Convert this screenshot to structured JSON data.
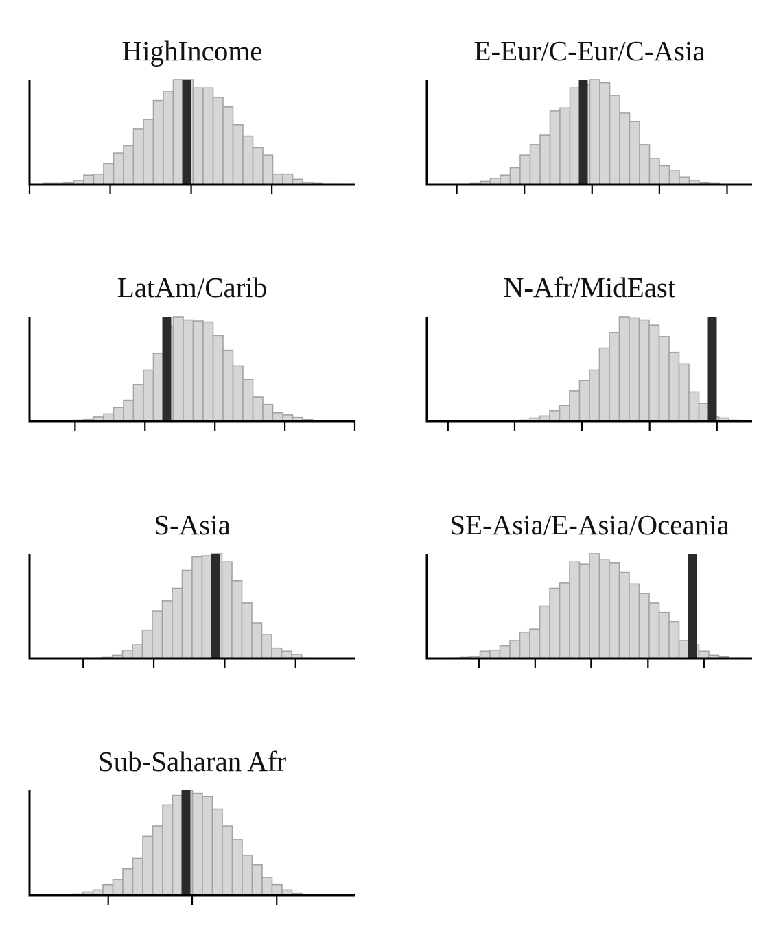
{
  "chart_data": [
    {
      "type": "bar",
      "title": "HighIncome",
      "bar_heights_relative": [
        0.01,
        0.01,
        0.015,
        0.04,
        0.09,
        0.1,
        0.2,
        0.3,
        0.37,
        0.53,
        0.62,
        0.8,
        0.89,
        1.0,
        1.0,
        0.92,
        0.92,
        0.83,
        0.74,
        0.57,
        0.46,
        0.35,
        0.28,
        0.1,
        0.1,
        0.05,
        0.02,
        0.01,
        0.005,
        0.005
      ],
      "observed_bin": 14,
      "x_ticks": [
        0.0,
        0.248,
        0.497,
        0.745
      ]
    },
    {
      "type": "bar",
      "title": "E-Eur/C-Eur/C-Asia",
      "bar_heights_relative": [
        0.005,
        0.01,
        0.03,
        0.06,
        0.09,
        0.16,
        0.28,
        0.38,
        0.47,
        0.7,
        0.73,
        0.92,
        0.95,
        1.0,
        0.97,
        0.85,
        0.68,
        0.6,
        0.38,
        0.25,
        0.18,
        0.13,
        0.07,
        0.04,
        0.015,
        0.01
      ],
      "observed_bin": 12,
      "x_ticks": [
        0.092,
        0.3,
        0.508,
        0.715,
        0.923
      ]
    },
    {
      "type": "bar",
      "title": "LatAm/Carib",
      "bar_heights_relative": [
        0.005,
        0.01,
        0.015,
        0.04,
        0.07,
        0.13,
        0.2,
        0.35,
        0.49,
        0.65,
        0.91,
        1.0,
        0.97,
        0.96,
        0.95,
        0.82,
        0.68,
        0.53,
        0.4,
        0.23,
        0.16,
        0.08,
        0.06,
        0.035,
        0.015,
        0.005
      ],
      "observed_bin": 10,
      "x_ticks": [
        0.14,
        0.355,
        0.57,
        0.785,
        1.0
      ]
    },
    {
      "type": "bar",
      "title": "N-Afr/MidEast",
      "bar_heights_relative": [
        0.005,
        0.01,
        0.03,
        0.05,
        0.1,
        0.15,
        0.29,
        0.39,
        0.49,
        0.7,
        0.85,
        1.0,
        0.99,
        0.97,
        0.92,
        0.81,
        0.66,
        0.55,
        0.28,
        0.17,
        0.04,
        0.03,
        0.01,
        0.005
      ],
      "observed_bin": 20,
      "x_ticks": [
        0.065,
        0.27,
        0.477,
        0.685,
        0.892
      ]
    },
    {
      "type": "bar",
      "title": "S-Asia",
      "bar_heights_relative": [
        0.005,
        0.01,
        0.03,
        0.08,
        0.13,
        0.27,
        0.45,
        0.55,
        0.67,
        0.84,
        0.97,
        0.98,
        1.0,
        0.92,
        0.74,
        0.53,
        0.34,
        0.23,
        0.1,
        0.07,
        0.04,
        0.005
      ],
      "observed_bin": 12,
      "x_ticks": [
        0.165,
        0.382,
        0.6,
        0.818
      ]
    },
    {
      "type": "bar",
      "title": "SE-Asia/E-Asia/Oceania",
      "bar_heights_relative": [
        0.005,
        0.01,
        0.02,
        0.07,
        0.08,
        0.12,
        0.17,
        0.25,
        0.28,
        0.5,
        0.67,
        0.72,
        0.92,
        0.9,
        1.0,
        0.94,
        0.91,
        0.82,
        0.71,
        0.62,
        0.53,
        0.44,
        0.35,
        0.17,
        0.13,
        0.07,
        0.03,
        0.015,
        0.005,
        0.005
      ],
      "observed_bin": 24,
      "x_ticks": [
        0.16,
        0.333,
        0.505,
        0.68,
        0.852
      ]
    },
    {
      "type": "bar",
      "title": "Sub-Saharan Afr",
      "bar_heights_relative": [
        0.005,
        0.01,
        0.03,
        0.05,
        0.1,
        0.15,
        0.25,
        0.35,
        0.56,
        0.66,
        0.86,
        0.95,
        1.0,
        0.97,
        0.94,
        0.82,
        0.66,
        0.53,
        0.38,
        0.29,
        0.17,
        0.1,
        0.05,
        0.015,
        0.005
      ],
      "observed_bin": 12,
      "x_ticks": [
        0.242,
        0.5,
        0.76
      ]
    }
  ]
}
